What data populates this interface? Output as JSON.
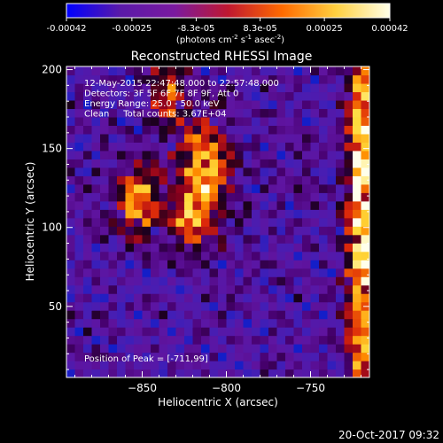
{
  "colorbar": {
    "tick_labels": [
      "-0.00042",
      "-0.00025",
      "-8.3e-05",
      "8.3e-05",
      "0.00025",
      "0.00042"
    ],
    "tick_values": [
      -0.00042,
      -0.00025,
      -8.3e-05,
      8.3e-05,
      0.00025,
      0.00042
    ],
    "range": [
      -0.00042,
      0.00042
    ],
    "unit_main": "(photons cm",
    "unit_sup1": "-2",
    "unit_mid1": " s",
    "unit_sup2": "-1",
    "unit_mid2": " asec",
    "unit_sup3": "-2",
    "unit_end": ")",
    "colors": [
      "#0000ff",
      "#5a1aa8",
      "#7a1aa0",
      "#c01830",
      "#ff6a00",
      "#ffd040",
      "#ffffe8"
    ]
  },
  "chart_data": {
    "type": "heatmap",
    "title": "Reconstructed RHESSI Image",
    "xlabel": "Heliocentric X (arcsec)",
    "ylabel": "Heliocentric Y (arcsec)",
    "xlim": [
      -895,
      -715
    ],
    "ylim": [
      5,
      202
    ],
    "xticks": [
      -850,
      -800,
      -750
    ],
    "xtick_labels": [
      "−850",
      "−800",
      "−750"
    ],
    "yticks": [
      50,
      100,
      150,
      200
    ],
    "ytick_labels": [
      "50",
      "100",
      "150",
      "200"
    ],
    "annotations": [
      "12-May-2015 22:47:48.000 to 22:57:48.000",
      "Detectors: 3F 5F 6F 7F 8F 9F, Att 0",
      "Energy Range: 25.0 - 50.0 keV",
      "Clean     Total counts: 3.67E+04"
    ],
    "peak_label": "Position of Peak = [-711,99]",
    "peak_position": [
      -711,
      99
    ],
    "sources": [
      {
        "x": -720,
        "y": 110,
        "sx": 6,
        "sy": 110,
        "amp": 1.0
      },
      {
        "x": -853,
        "y": 118,
        "sx": 10,
        "sy": 18,
        "amp": 0.75
      },
      {
        "x": -813,
        "y": 135,
        "sx": 11,
        "sy": 25,
        "amp": 0.85
      },
      {
        "x": -822,
        "y": 105,
        "sx": 8,
        "sy": 12,
        "amp": 0.55
      },
      {
        "x": -835,
        "y": 185,
        "sx": 8,
        "sy": 15,
        "amp": 0.6
      }
    ]
  },
  "footer": {
    "timestamp": "20-Oct-2017 09:32"
  }
}
